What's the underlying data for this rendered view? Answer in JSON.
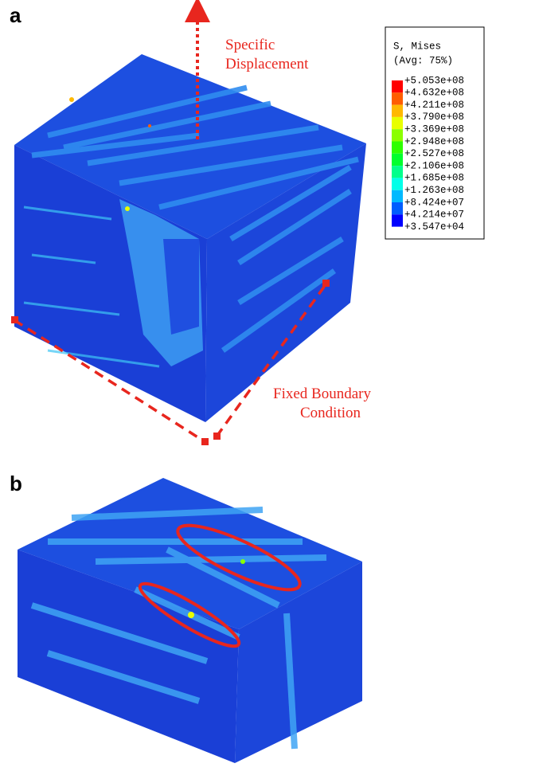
{
  "panels": [
    {
      "label": "a"
    },
    {
      "label": "b"
    }
  ],
  "annotations": {
    "displacement_lines": [
      "Specific",
      "Displacement"
    ],
    "boundary_lines": [
      "Fixed Boundary",
      "Condition"
    ]
  },
  "legend": {
    "title_lines": [
      "S, Mises",
      "(Avg: 75%)"
    ],
    "labels": [
      "+5.053e+08",
      "+4.632e+08",
      "+4.211e+08",
      "+3.790e+08",
      "+3.369e+08",
      "+2.948e+08",
      "+2.527e+08",
      "+2.106e+08",
      "+1.685e+08",
      "+1.263e+08",
      "+8.424e+07",
      "+4.214e+07",
      "+3.547e+04"
    ],
    "colors": [
      "#ff0000",
      "#ff5d00",
      "#ffb900",
      "#e8ff00",
      "#8bff00",
      "#2eff00",
      "#00ff2e",
      "#00ff8b",
      "#00ffe8",
      "#00b9ff",
      "#005dff",
      "#0000ff"
    ]
  }
}
